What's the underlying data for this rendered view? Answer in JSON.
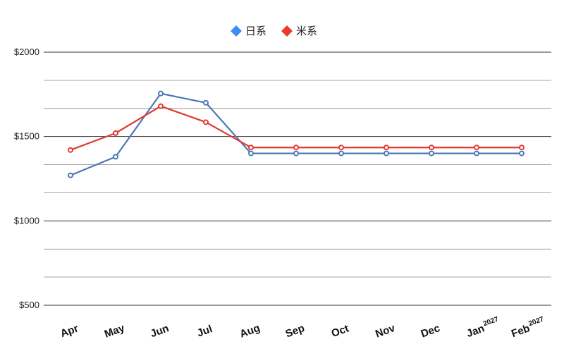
{
  "chart_data": {
    "type": "line",
    "title": "",
    "xlabel": "",
    "ylabel": "",
    "categories": [
      {
        "label": "Apr",
        "sup": ""
      },
      {
        "label": "May",
        "sup": ""
      },
      {
        "label": "Jun",
        "sup": ""
      },
      {
        "label": "Jul",
        "sup": ""
      },
      {
        "label": "Aug",
        "sup": ""
      },
      {
        "label": "Sep",
        "sup": ""
      },
      {
        "label": "Oct",
        "sup": ""
      },
      {
        "label": "Nov",
        "sup": ""
      },
      {
        "label": "Dec",
        "sup": ""
      },
      {
        "label": "Jan",
        "sup": "2027"
      },
      {
        "label": "Feb",
        "sup": "2027"
      }
    ],
    "series": [
      {
        "name": "日系",
        "color": "#4a78b6",
        "legend_color": "#3d8ef0",
        "values": [
          1270,
          1380,
          1755,
          1700,
          1400,
          1400,
          1400,
          1400,
          1400,
          1400,
          1400
        ]
      },
      {
        "name": "米系",
        "color": "#e03a32",
        "legend_color": "#ea3a30",
        "values": [
          1420,
          1520,
          1680,
          1585,
          1435,
          1435,
          1435,
          1435,
          1435,
          1435,
          1435
        ]
      }
    ],
    "y_ticks": [
      {
        "value": 500,
        "label": "$500"
      },
      {
        "value": 1000,
        "label": "$1000"
      },
      {
        "value": 1500,
        "label": "$1500"
      },
      {
        "value": 2000,
        "label": "$2000"
      }
    ],
    "ylim": [
      500,
      2000
    ],
    "minor_gridlines": [
      667,
      833,
      1167,
      1333,
      1667,
      1833
    ],
    "grid": true,
    "legend_position": "top-center",
    "x_tick_rotation_deg": -20
  }
}
